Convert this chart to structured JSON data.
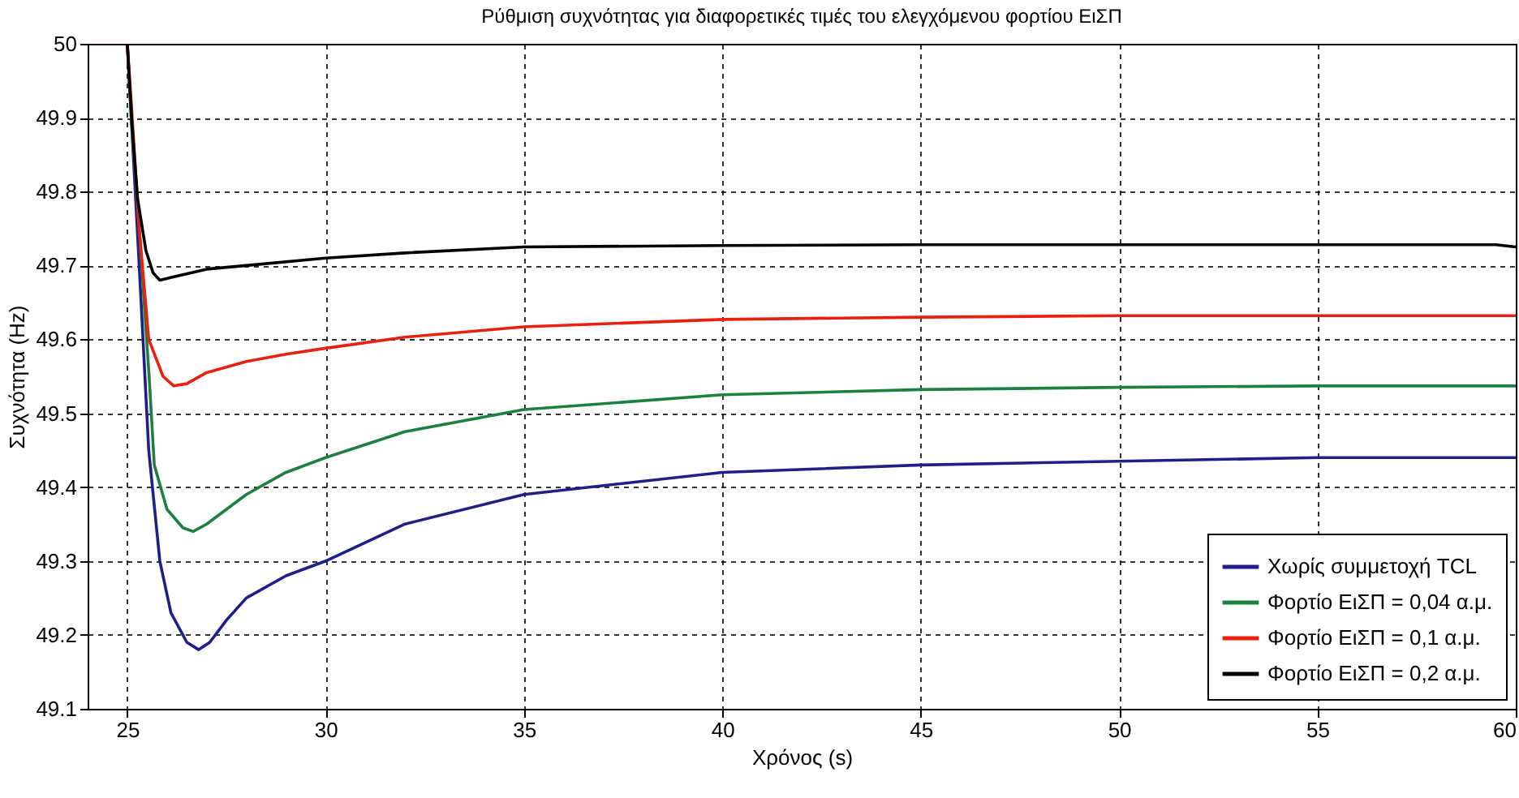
{
  "chart_data": {
    "type": "line",
    "title": "Ρύθμιση συχνότητας για διαφορετικές τιμές του ελεγχόμενου φορτίου ΕιΣΠ",
    "xlabel": "Χρόνος (s)",
    "ylabel": "Συχνότητα (Hz)",
    "xlim": [
      24,
      60
    ],
    "xticks": [
      25,
      30,
      35,
      40,
      45,
      50,
      55,
      60
    ],
    "ylim": [
      49.1,
      50
    ],
    "yticks": [
      49.1,
      49.2,
      49.3,
      49.4,
      49.5,
      49.6,
      49.7,
      49.8,
      49.9,
      50
    ],
    "grid": true,
    "legend": "bottom right",
    "line_style": "solid",
    "marker": "none",
    "series": [
      {
        "name": "Χωρίς συμμετοχή TCL",
        "color": "#1f1f8a",
        "x": [
          24,
          25,
          25.1,
          25.3,
          25.54,
          25.82,
          26.1,
          26.5,
          26.8,
          27.08,
          27.5,
          28,
          29,
          30,
          32,
          35,
          40,
          45,
          50,
          55,
          60
        ],
        "values": [
          50,
          50,
          49.9,
          49.7,
          49.45,
          49.3,
          49.23,
          49.19,
          49.18,
          49.19,
          49.22,
          49.25,
          49.28,
          49.3,
          49.35,
          49.39,
          49.42,
          49.43,
          49.435,
          49.44,
          49.44
        ]
      },
      {
        "name": "Φορτίο ΕιΣΠ = 0,04 α.μ.",
        "color": "#1e8040",
        "x": [
          24,
          25,
          25.1,
          25.3,
          25.55,
          25.68,
          26,
          26.4,
          26.66,
          27,
          27.5,
          28,
          29,
          30,
          32,
          35,
          40,
          45,
          50,
          55,
          60
        ],
        "values": [
          50,
          50,
          49.9,
          49.75,
          49.55,
          49.43,
          49.37,
          49.345,
          49.34,
          49.35,
          49.37,
          49.39,
          49.42,
          49.44,
          49.475,
          49.505,
          49.525,
          49.532,
          49.535,
          49.537,
          49.537
        ]
      },
      {
        "name": "Φορτίο ΕιΣΠ = 0,1 α.μ.",
        "color": "#e82010",
        "x": [
          24,
          25,
          25.1,
          25.3,
          25.54,
          25.9,
          26.17,
          26.5,
          27,
          28,
          29,
          30,
          32,
          35,
          40,
          45,
          50,
          55,
          60
        ],
        "values": [
          50,
          50,
          49.92,
          49.75,
          49.6,
          49.55,
          49.537,
          49.54,
          49.555,
          49.57,
          49.58,
          49.588,
          49.603,
          49.617,
          49.627,
          49.63,
          49.632,
          49.632,
          49.632
        ]
      },
      {
        "name": "Φορτίο ΕιΣΠ = 0,2 α.μ.",
        "color": "#000000",
        "x": [
          24,
          25,
          25.12,
          25.26,
          25.47,
          25.65,
          25.82,
          26.2,
          27,
          28,
          30,
          32,
          35,
          40,
          45,
          50,
          55,
          59.5,
          60
        ],
        "values": [
          50,
          50,
          49.89,
          49.79,
          49.72,
          49.69,
          49.68,
          49.685,
          49.695,
          49.7,
          49.71,
          49.717,
          49.725,
          49.727,
          49.728,
          49.728,
          49.728,
          49.728,
          49.725
        ]
      }
    ]
  }
}
